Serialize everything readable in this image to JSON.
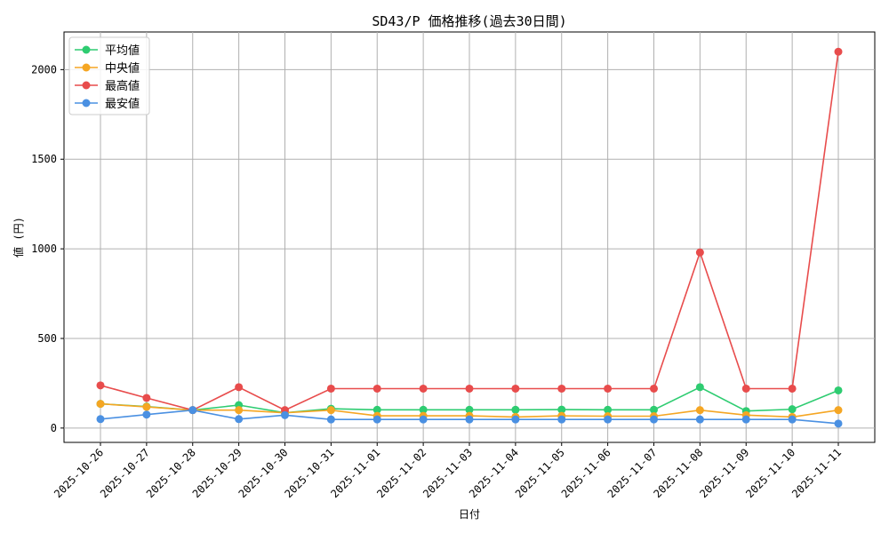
{
  "chart_data": {
    "type": "line",
    "title": "SD43/P 価格推移(過去30日間)",
    "xlabel": "日付",
    "ylabel": "値 (円)",
    "ylim": [
      -80,
      2210
    ],
    "yticks": [
      0,
      500,
      1000,
      1500,
      2000
    ],
    "grid": true,
    "legend_position": "top-left",
    "x": [
      "2025-10-26",
      "2025-10-27",
      "2025-10-28",
      "2025-10-29",
      "2025-10-30",
      "2025-10-31",
      "2025-11-01",
      "2025-11-02",
      "2025-11-03",
      "2025-11-04",
      "2025-11-05",
      "2025-11-06",
      "2025-11-07",
      "2025-11-08",
      "2025-11-09",
      "2025-11-10",
      "2025-11-11"
    ],
    "series": [
      {
        "name": "平均値",
        "color": "#2ecc71",
        "values": [
          135,
          120,
          100,
          128,
          85,
          108,
          102,
          102,
          102,
          102,
          103,
          102,
          102,
          228,
          95,
          105,
          210
        ]
      },
      {
        "name": "中央値",
        "color": "#f5a623",
        "values": [
          135,
          118,
          100,
          100,
          85,
          100,
          68,
          68,
          68,
          62,
          68,
          66,
          66,
          100,
          72,
          62,
          100
        ]
      },
      {
        "name": "最高値",
        "color": "#e84c4c",
        "values": [
          238,
          168,
          100,
          228,
          100,
          220,
          220,
          220,
          220,
          220,
          220,
          220,
          220,
          980,
          220,
          220,
          2100
        ]
      },
      {
        "name": "最安値",
        "color": "#4a90e2",
        "values": [
          50,
          75,
          100,
          50,
          72,
          48,
          48,
          48,
          48,
          48,
          48,
          48,
          48,
          48,
          48,
          48,
          25
        ]
      }
    ]
  }
}
